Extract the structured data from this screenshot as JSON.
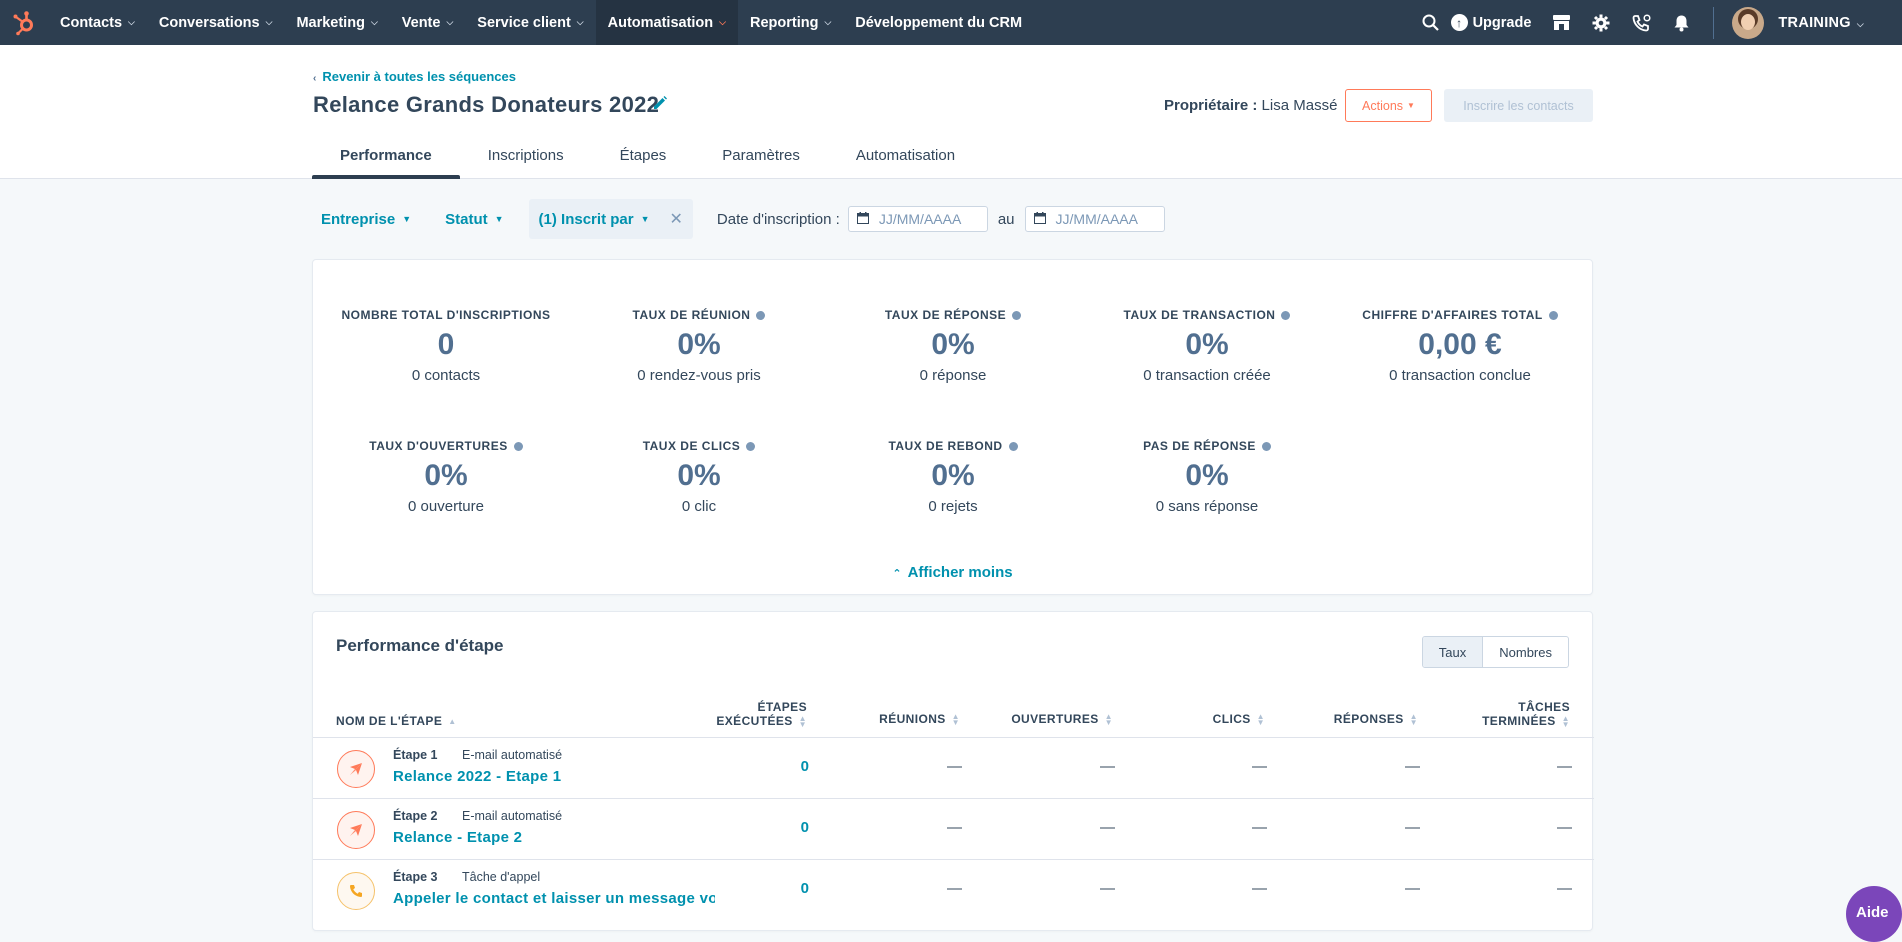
{
  "nav": {
    "items": [
      {
        "label": "Contacts",
        "caret": true
      },
      {
        "label": "Conversations",
        "caret": true
      },
      {
        "label": "Marketing",
        "caret": true
      },
      {
        "label": "Vente",
        "caret": true
      },
      {
        "label": "Service client",
        "caret": true
      },
      {
        "label": "Automatisation",
        "caret": true
      },
      {
        "label": "Reporting",
        "caret": true
      },
      {
        "label": "Développement du CRM",
        "caret": false
      }
    ],
    "active_index": 5,
    "upgrade_label": "Upgrade",
    "account_label": "TRAINING"
  },
  "header": {
    "back_link": "Revenir à toutes les séquences",
    "title": "Relance Grands Donateurs 2022",
    "owner_label": "Propriétaire :",
    "owner_name": "Lisa Massé",
    "actions_label": "Actions",
    "enroll_label": "Inscrire les contacts",
    "tabs": [
      "Performance",
      "Inscriptions",
      "Étapes",
      "Paramètres",
      "Automatisation"
    ],
    "active_tab": 0
  },
  "filters": {
    "company": "Entreprise",
    "status": "Statut",
    "enrolled_by": "(1) Inscrit par",
    "date_label": "Date d'inscription :",
    "date_from_placeholder": "JJ/MM/AAAA",
    "date_sep": "au",
    "date_to_placeholder": "JJ/MM/AAAA"
  },
  "stats": [
    {
      "label": "Nombre total d'inscriptions",
      "value": "0",
      "sub": "0 contacts",
      "info": false
    },
    {
      "label": "Taux de réunion",
      "value": "0%",
      "sub": "0 rendez-vous pris",
      "info": true
    },
    {
      "label": "Taux de réponse",
      "value": "0%",
      "sub": "0 réponse",
      "info": true
    },
    {
      "label": "Taux de transaction",
      "value": "0%",
      "sub": "0 transaction créée",
      "info": true
    },
    {
      "label": "Chiffre d'affaires total",
      "value": "0,00 €",
      "sub": "0 transaction conclue",
      "info": true
    },
    {
      "label": "Taux d'ouvertures",
      "value": "0%",
      "sub": "0 ouverture",
      "info": true
    },
    {
      "label": "Taux de clics",
      "value": "0%",
      "sub": "0 clic",
      "info": true
    },
    {
      "label": "Taux de rebond",
      "value": "0%",
      "sub": "0 rejets",
      "info": true
    },
    {
      "label": "Pas de réponse",
      "value": "0%",
      "sub": "0 sans réponse",
      "info": true
    }
  ],
  "show_less": "Afficher moins",
  "step_performance": {
    "title": "Performance d'étape",
    "toggle": [
      "Taux",
      "Nombres"
    ],
    "columns": [
      "Nom de l'étape",
      "Étapes exécutées",
      "Réunions",
      "Ouvertures",
      "Clics",
      "Réponses",
      "Tâches terminées"
    ],
    "rows": [
      {
        "num": "Étape 1",
        "type": "E-mail automatisé",
        "name": "Relance 2022 - Etape 1",
        "icon": "send-icon",
        "executed": "0",
        "meetings": "—",
        "opens": "—",
        "clicks": "—",
        "replies": "—",
        "tasks": "—"
      },
      {
        "num": "Étape 2",
        "type": "E-mail automatisé",
        "name": "Relance - Etape 2",
        "icon": "send-icon",
        "executed": "0",
        "meetings": "—",
        "opens": "—",
        "clicks": "—",
        "replies": "—",
        "tasks": "—"
      },
      {
        "num": "Étape 3",
        "type": "Tâche d'appel",
        "name": "Appeler le contact et laisser un message vocal",
        "icon": "phone-icon",
        "executed": "0",
        "meetings": "—",
        "opens": "—",
        "clicks": "—",
        "replies": "—",
        "tasks": "—"
      }
    ]
  },
  "help_label": "Aide",
  "colors": {
    "nav_bg": "#2d3e50",
    "accent": "#ff7a59",
    "link": "#0091ae",
    "text": "#33475b"
  }
}
